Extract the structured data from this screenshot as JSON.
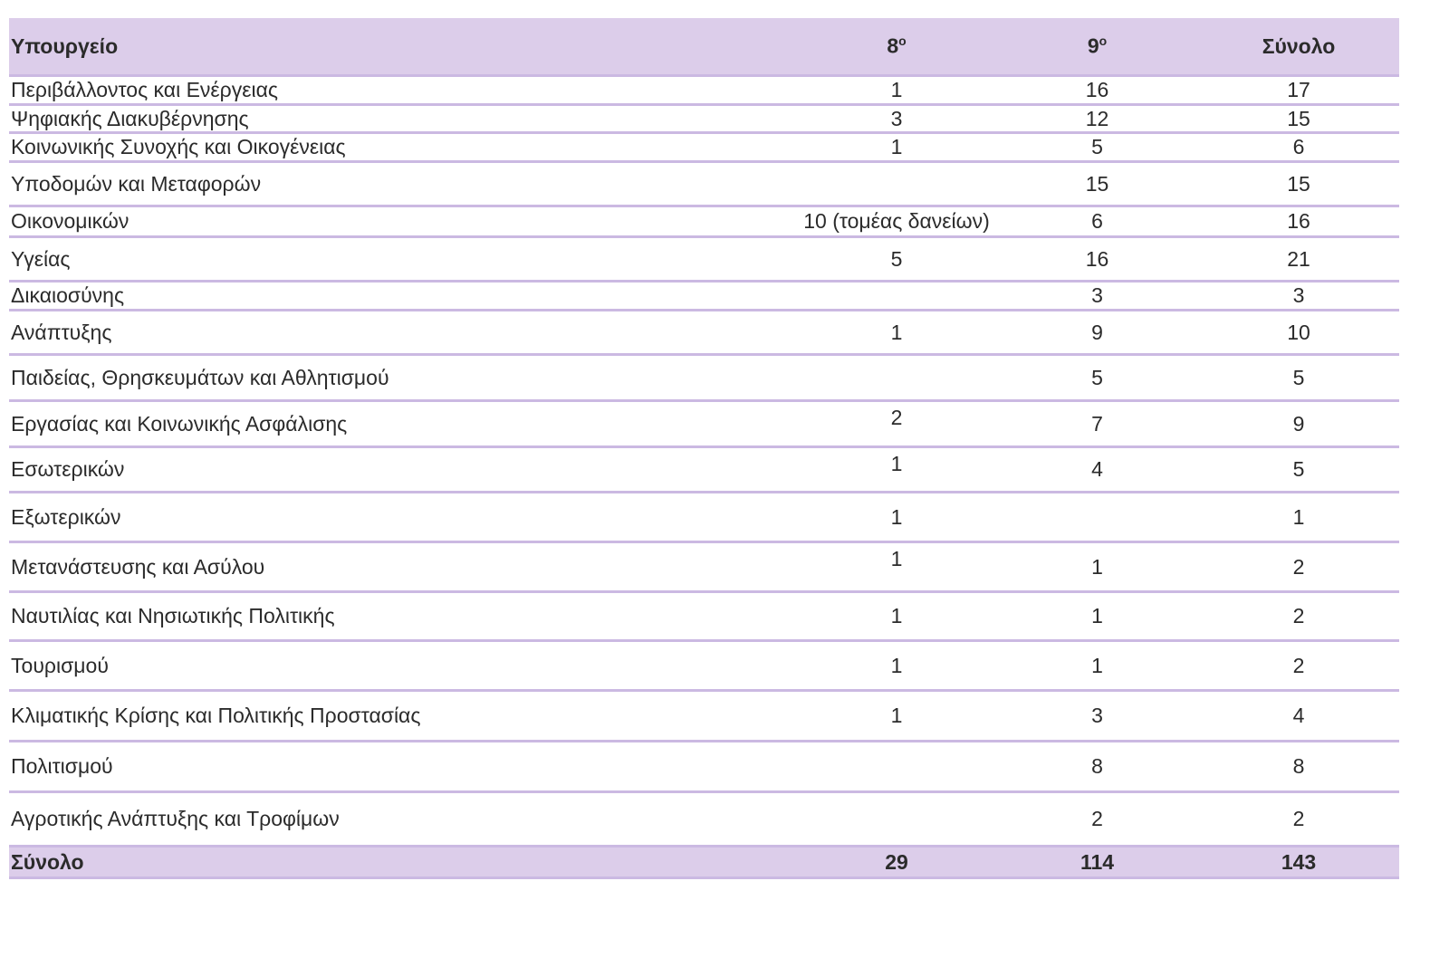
{
  "table": {
    "headers": [
      {
        "main": "Υπουργείο",
        "sup": ""
      },
      {
        "main": "8",
        "sup": "ο"
      },
      {
        "main": "9",
        "sup": "ο"
      },
      {
        "main": "Σύνολο",
        "sup": ""
      }
    ],
    "rows": [
      [
        "Περιβάλλοντος και Ενέργειας",
        "1",
        "16",
        "17"
      ],
      [
        "Ψηφιακής Διακυβέρνησης",
        "3",
        "12",
        "15"
      ],
      [
        "Κοινωνικής Συνοχής και Οικογένειας",
        "1",
        "5",
        "6"
      ],
      [
        "Υποδομών και Μεταφορών",
        "",
        "15",
        "15"
      ],
      [
        "Οικονομικών",
        "10 (τομέας δανείων)",
        "6",
        "16"
      ],
      [
        "Υγείας",
        "5",
        "16",
        "21"
      ],
      [
        "Δικαιοσύνης",
        "",
        "3",
        "3"
      ],
      [
        "Ανάπτυξης",
        "1",
        "9",
        "10"
      ],
      [
        "Παιδείας, Θρησκευμάτων και Αθλητισμού",
        "",
        "5",
        "5"
      ],
      [
        "Εργασίας και Κοινωνικής Ασφάλισης",
        "2",
        "7",
        "9"
      ],
      [
        "Εσωτερικών",
        "1",
        "4",
        "5"
      ],
      [
        "Εξωτερικών",
        "1",
        "",
        "1"
      ],
      [
        "Μετανάστευσης και Ασύλου",
        "1",
        "1",
        "2"
      ],
      [
        "Ναυτιλίας και Νησιωτικής Πολιτικής",
        "1",
        "1",
        "2"
      ],
      [
        "Τουρισμού",
        "1",
        "1",
        "2"
      ],
      [
        "Κλιματικής Κρίσης και Πολιτικής Προστασίας",
        "1",
        "3",
        "4"
      ],
      [
        "Πολιτισμού",
        "",
        "8",
        "8"
      ],
      [
        "Αγροτικής Ανάπτυξης και Τροφίμων",
        "",
        "2",
        "2"
      ]
    ],
    "total": [
      "Σύνολο",
      "29",
      "114",
      "143"
    ]
  },
  "colors": {
    "header_bg": "#dccdea",
    "rule": "#cbb9e2"
  }
}
